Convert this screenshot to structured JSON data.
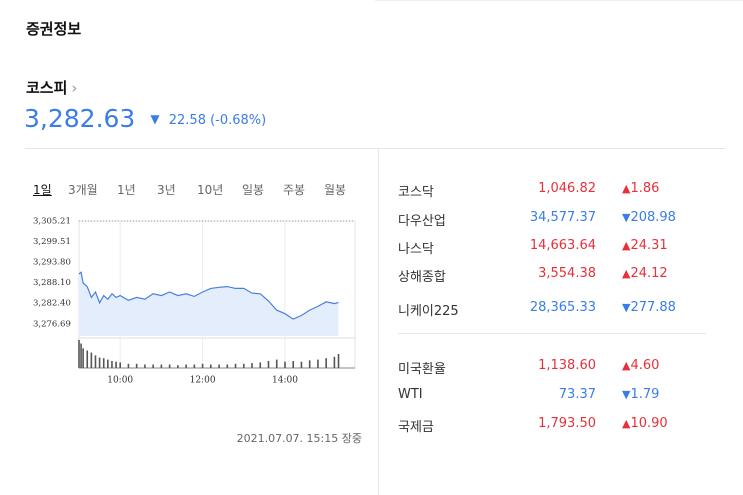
{
  "header": {
    "title": "증권정보"
  },
  "index": {
    "name": "코스피",
    "value": "3,282.63",
    "change": "22.58 (-0.68%)",
    "dir": "down"
  },
  "tabs": [
    "1일",
    "3개월",
    "1년",
    "3년",
    "10년",
    "일봉",
    "주봉",
    "월봉"
  ],
  "chart_data": {
    "type": "line",
    "x": [
      9.0,
      9.05,
      9.1,
      9.2,
      9.3,
      9.4,
      9.5,
      9.6,
      9.7,
      9.8,
      9.9,
      10.0,
      10.2,
      10.4,
      10.6,
      10.8,
      11.0,
      11.2,
      11.4,
      11.6,
      11.8,
      12.0,
      12.2,
      12.4,
      12.6,
      12.8,
      13.0,
      13.2,
      13.4,
      13.6,
      13.8,
      14.0,
      14.2,
      14.4,
      14.6,
      14.8,
      15.0,
      15.2,
      15.3
    ],
    "series": [
      {
        "color": "#4a7fe0",
        "values": [
          3290.5,
          3291,
          3288,
          3287,
          3284,
          3285.5,
          3282.5,
          3284.5,
          3283.5,
          3285,
          3284,
          3284.5,
          3283.2,
          3284,
          3283.5,
          3285,
          3284.5,
          3285.5,
          3284.5,
          3285,
          3284.3,
          3285.5,
          3286.5,
          3286.8,
          3287,
          3286.5,
          3286.5,
          3285.2,
          3285,
          3283,
          3280.5,
          3279.5,
          3278,
          3279,
          3280.5,
          3281.5,
          3282.8,
          3282.3,
          3282.63
        ]
      }
    ],
    "volume": [
      40,
      35,
      28,
      25,
      22,
      18,
      15,
      14,
      12,
      10,
      9,
      8,
      6,
      6,
      5,
      5,
      5,
      5,
      4,
      5,
      5,
      6,
      5,
      5,
      5,
      6,
      6,
      7,
      8,
      10,
      12,
      9,
      10,
      9,
      11,
      12,
      14,
      16,
      20
    ],
    "xlim": [
      9,
      15.7
    ],
    "xticks": [
      {
        "value": 10,
        "label": "10:00"
      },
      {
        "value": 12,
        "label": "12:00"
      },
      {
        "value": 14,
        "label": "14:00"
      }
    ],
    "ylim": [
      3273.3,
      3305.21
    ],
    "yticks": [
      {
        "value": 3305.21,
        "label": "3,305.21"
      },
      {
        "value": 3299.51,
        "label": "3,299.51"
      },
      {
        "value": 3293.8,
        "label": "3,293.80"
      },
      {
        "value": 3288.1,
        "label": "3,288.10"
      },
      {
        "value": 3282.4,
        "label": "3,282.40"
      },
      {
        "value": 3276.69,
        "label": "3,276.69"
      }
    ]
  },
  "timestamp": "2021.07.07. 15:15 장중",
  "markets": [
    {
      "name": "코스닥",
      "value": "1,046.82",
      "change": "1.86",
      "dir": "up"
    },
    {
      "name": "다우산업",
      "value": "34,577.37",
      "change": "208.98",
      "dir": "down"
    },
    {
      "name": "나스닥",
      "value": "14,663.64",
      "change": "24.31",
      "dir": "up"
    },
    {
      "name": "상해종합",
      "value": "3,554.38",
      "change": "24.12",
      "dir": "up"
    },
    {
      "name": "니케이225",
      "value": "28,365.33",
      "change": "277.88",
      "dir": "down"
    }
  ],
  "others": [
    {
      "name": "미국환율",
      "value": "1,138.60",
      "change": "4.60",
      "dir": "up"
    },
    {
      "name": "WTI",
      "value": "73.37",
      "change": "1.79",
      "dir": "down"
    },
    {
      "name": "국제금",
      "value": "1,793.50",
      "change": "10.90",
      "dir": "up"
    }
  ]
}
